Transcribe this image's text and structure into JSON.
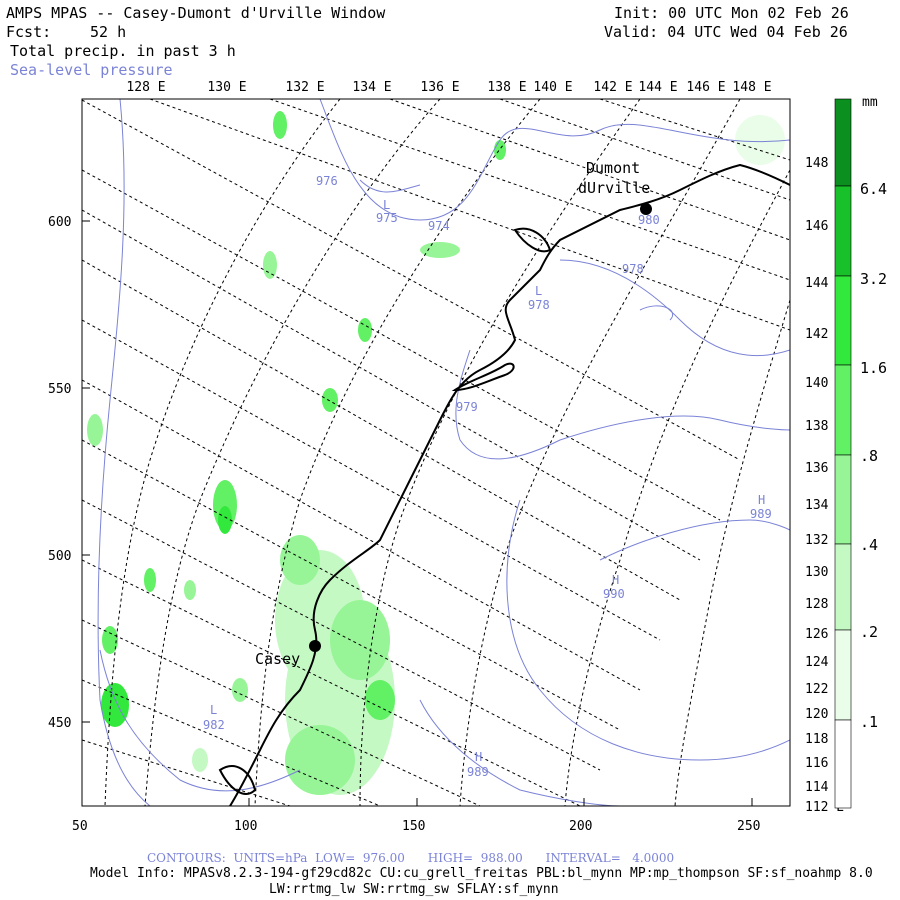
{
  "header": {
    "title": "AMPS MPAS -- Casey-Dumont d'Urville Window",
    "fcst_label": "Fcst:",
    "fcst_value": "52 h",
    "field": "Total precip. in past 3 h",
    "overlay": "Sea-level pressure",
    "init": "Init: 00 UTC Mon 02 Feb 26",
    "valid": "Valid: 04 UTC Wed 04 Feb 26"
  },
  "axes": {
    "x_ticks": [
      "50",
      "100",
      "150",
      "200",
      "250"
    ],
    "y_ticks": [
      "450",
      "500",
      "550",
      "600"
    ],
    "lon_top": [
      "128 E",
      "130 E",
      "132 E",
      "134 E",
      "136 E",
      "138 E",
      "140 E",
      "142 E",
      "144 E",
      "146 E",
      "148 E"
    ],
    "lat_right": [
      "148 E",
      "146 E",
      "144 E",
      "142 E",
      "140 E",
      "138 E",
      "136 E",
      "134 E",
      "132 E",
      "130 E",
      "128 E",
      "126 E",
      "124 E",
      "122 E",
      "120 E",
      "118 E",
      "116 E",
      "114 E",
      "112 E"
    ]
  },
  "colorbar": {
    "unit": "mm",
    "labels": [
      "6.4",
      "3.2",
      "1.6",
      ".8",
      ".4",
      ".2",
      ".1"
    ],
    "colors": [
      "#0b8f1e",
      "#18c029",
      "#33e83c",
      "#62f065",
      "#97f597",
      "#c5f9c4",
      "#eafde9"
    ]
  },
  "stations": [
    {
      "name_line1": "Dumont",
      "name_line2": "dUrville"
    },
    {
      "name_line1": "Casey"
    }
  ],
  "pressure_labels": [
    {
      "text": "976"
    },
    {
      "text": "L"
    },
    {
      "text": "975"
    },
    {
      "text": "974"
    },
    {
      "text": "980"
    },
    {
      "text": "978"
    },
    {
      "text": "L"
    },
    {
      "text": "978"
    },
    {
      "text": "979"
    },
    {
      "text": "H"
    },
    {
      "text": "989"
    },
    {
      "text": "H"
    },
    {
      "text": "990"
    },
    {
      "text": "L"
    },
    {
      "text": "982"
    },
    {
      "text": "H"
    },
    {
      "text": "989"
    }
  ],
  "footer": {
    "contours": "CONTOURS:  UNITS=hPa  LOW=  976.00      HIGH=  988.00      INTERVAL=   4.0000",
    "model_info": "Model Info: MPASv8.2.3-194-gf29cd82c CU:cu_grell_freitas PBL:bl_mynn MP:mp_thompson SF:sf_noahmp 8.0",
    "model_info2": "LW:rrtmg_lw SW:rrtmg_sw SFLAY:sf_mynn"
  },
  "colors": {
    "contour": "#7b83d6",
    "coast": "#000000",
    "grid": "#000000"
  }
}
